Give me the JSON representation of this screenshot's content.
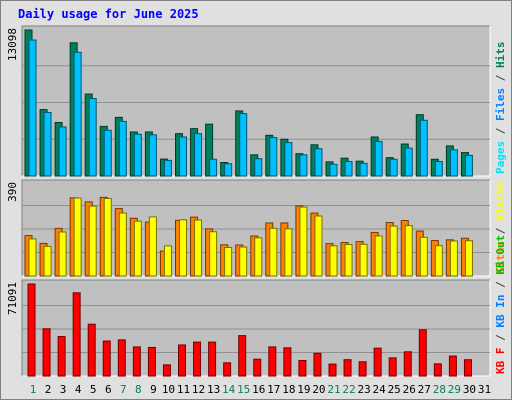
{
  "title": "Daily usage for June 2025",
  "colors": {
    "frame_bg": "#e0e0e0",
    "plot_bg": "#c0c0c0",
    "title": "#0000ff",
    "hits": "#00805c",
    "files": "#00c0ff",
    "pages": "#00e0ff",
    "visits": "#ffff00",
    "sites": "#ff8000",
    "kbin": "#0080ff",
    "kbout": "#00c000",
    "kbf": "#ff0000",
    "weekday_label": "#000000",
    "weekend_label": "#00805c"
  },
  "chart_data": {
    "type": "bar",
    "title": "Daily usage for June 2025",
    "x": [
      "1",
      "2",
      "3",
      "4",
      "5",
      "6",
      "7",
      "8",
      "9",
      "10",
      "11",
      "12",
      "13",
      "14",
      "15",
      "16",
      "17",
      "18",
      "19",
      "20",
      "21",
      "22",
      "23",
      "24",
      "25",
      "26",
      "27",
      "28",
      "29",
      "30",
      "31"
    ],
    "weekend_days": [
      "1",
      "7",
      "8",
      "14",
      "15",
      "21",
      "22",
      "28",
      "29"
    ],
    "panels": [
      {
        "ylabel_top": "13098",
        "ymax": 13098,
        "legend": [
          "Pages",
          "/",
          "Files",
          "/",
          "Hits"
        ],
        "legend_colors": [
          "#00e0ff",
          "#404040",
          "#0080ff",
          "#404040",
          "#00805c"
        ],
        "series": [
          {
            "name": "Hits",
            "values": [
              13098,
              5960,
              4800,
              11950,
              7350,
              4450,
              5260,
              3950,
              3950,
              1520,
              3800,
              4250,
              4650,
              1210,
              5840,
              1900,
              3650,
              3300,
              2000,
              2800,
              1270,
              1600,
              1330,
              3500,
              1650,
              2870,
              5500,
              1500,
              2700,
              2100,
              0
            ]
          },
          {
            "name": "Files",
            "values": [
              12200,
              5700,
              4400,
              11100,
              6950,
              4100,
              4900,
              3750,
              3700,
              1400,
              3500,
              3800,
              1500,
              1100,
              5600,
              1550,
              3450,
              3000,
              1900,
              2450,
              1050,
              1300,
              1140,
              3100,
              1500,
              2500,
              5000,
              1300,
              2350,
              1850,
              0
            ]
          }
        ]
      },
      {
        "ylabel_top": "390",
        "ymax": 390,
        "legend": [
          "Sites",
          "/",
          "Visits"
        ],
        "legend_colors": [
          "#ff8000",
          "#404040",
          "#ffff00"
        ],
        "series": [
          {
            "name": "Visits",
            "values": [
              165,
              132,
              196,
              347,
              311,
              345,
              280,
              244,
              263,
              134,
              250,
              249,
              197,
              127,
              129,
              170,
              212,
              210,
              307,
              267,
              134,
              140,
              141,
              178,
              222,
              224,
              172,
              135,
              156,
              157,
              0
            ]
          },
          {
            "name": "Sites",
            "values": [
              180,
              145,
              212,
              348,
              330,
              350,
              300,
              257,
              240,
              111,
              248,
              262,
              210,
              139,
              138,
              178,
              236,
              236,
              312,
              280,
              144,
              149,
              153,
              194,
              238,
              247,
              200,
              158,
              161,
              168,
              0
            ]
          }
        ]
      },
      {
        "ylabel_top": "71091",
        "ymax": 71091,
        "legend": [
          "KB F",
          "/",
          "KB In",
          "/",
          "KB Out"
        ],
        "legend_colors": [
          "#ff0000",
          "#404040",
          "#0080ff",
          "#404040",
          "#00c000"
        ],
        "series": [
          {
            "name": "KB F",
            "values": [
              71091,
              36500,
              30500,
              64300,
              40000,
              27000,
              27900,
              22500,
              22100,
              8600,
              24000,
              26200,
              26200,
              10200,
              31200,
              13000,
              22500,
              21800,
              12000,
              17500,
              9200,
              12600,
              11000,
              21500,
              14000,
              18700,
              35700,
              9400,
              15400,
              12600,
              0
            ]
          }
        ]
      }
    ]
  }
}
